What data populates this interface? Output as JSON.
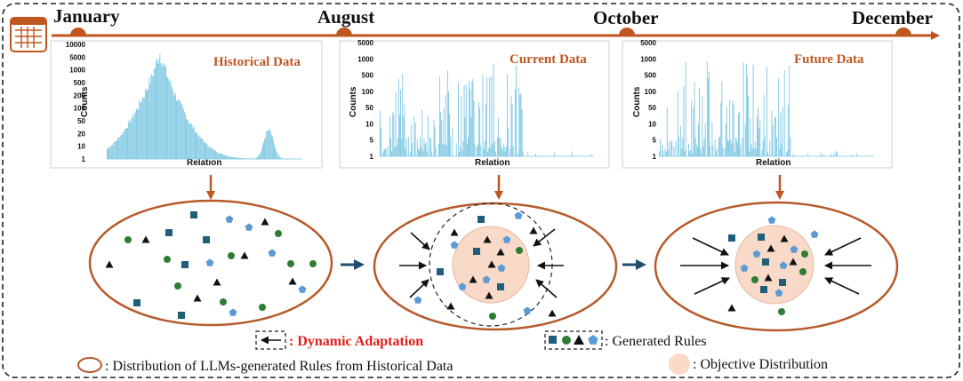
{
  "timeline": {
    "months": [
      "January",
      "August",
      "October",
      "December"
    ]
  },
  "histograms": [
    {
      "title": "Historical Data",
      "ylabel": "Counts",
      "xlabel": "Relation",
      "yticks": [
        "10000",
        "5000",
        "1000",
        "500",
        "200",
        "100",
        "50",
        "20",
        "10",
        "1"
      ],
      "pattern": "historical"
    },
    {
      "title": "Current Data",
      "ylabel": "Counts",
      "xlabel": "Relation",
      "yticks": [
        "5000",
        "1000",
        "500",
        "100",
        "50",
        "10",
        "5",
        "1"
      ],
      "pattern": "current"
    },
    {
      "title": "Future Data",
      "ylabel": "Counts",
      "xlabel": "Relation",
      "yticks": [
        "5000",
        "1000",
        "500",
        "100",
        "50",
        "10",
        "5",
        "1"
      ],
      "pattern": "future"
    }
  ],
  "legend": {
    "dynamic_adaptation": ": Dynamic Adaptation",
    "generated_rules": ": Generated Rules",
    "distribution_historical": ": Distribution of LLMs-generated Rules from Historical Data",
    "objective_distribution": ": Objective Distribution"
  },
  "colors": {
    "accent": "#c0561f",
    "bar": "#7ec8e3",
    "square": "#1f5f7a",
    "circle": "#2e7d32",
    "triangle": "#111111",
    "pentagon": "#5b9bd5",
    "objective_fill": "#f9d9c8",
    "arrow_blue": "#1f4e6e",
    "highlight_red": "#e0201b"
  }
}
